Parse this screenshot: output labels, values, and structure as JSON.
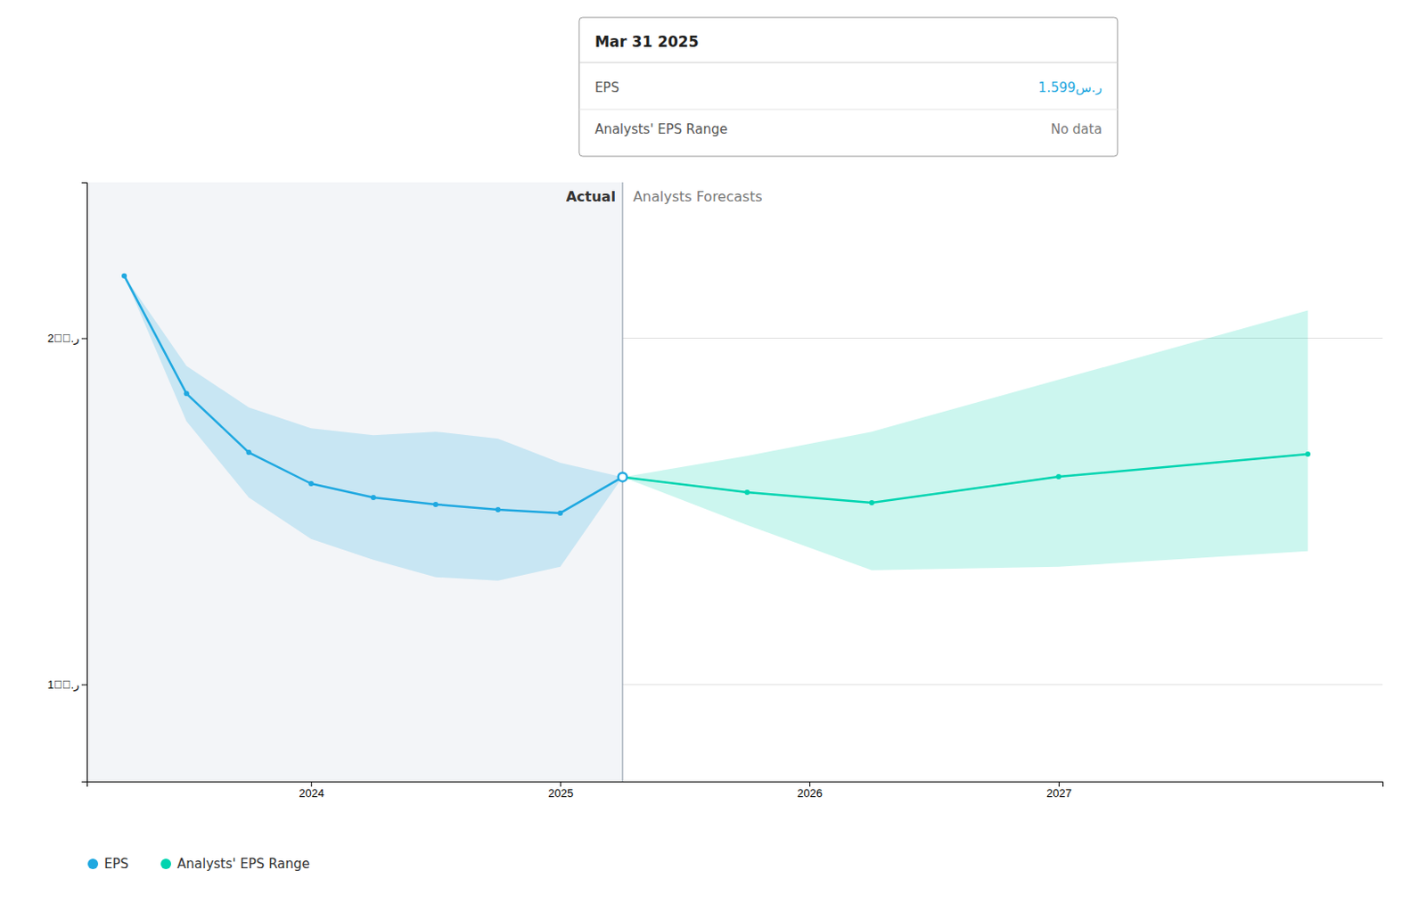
{
  "chart_data": {
    "type": "line",
    "xlim": [
      2023.1,
      2028.3
    ],
    "xticks": [
      2024,
      2025,
      2026,
      2027
    ],
    "ylim": [
      0.72,
      2.45
    ],
    "yticks": [
      {
        "value": 1.0,
        "label": "ر.س٘1"
      },
      {
        "value": 2.0,
        "label": "ر.س٘2"
      }
    ],
    "grid": true,
    "legend": "bottom left",
    "series": [
      {
        "name": "EPS",
        "color": "#1fa8e0",
        "x": [
          2023.25,
          2023.5,
          2023.75,
          2024.0,
          2024.25,
          2024.5,
          2024.75,
          2025.0,
          2025.25
        ],
        "values": [
          2.18,
          1.84,
          1.67,
          1.58,
          1.54,
          1.52,
          1.505,
          1.495,
          1.599
        ],
        "upper": [
          2.18,
          1.92,
          1.8,
          1.74,
          1.72,
          1.73,
          1.71,
          1.64,
          1.599
        ],
        "lower": [
          2.18,
          1.76,
          1.54,
          1.42,
          1.36,
          1.31,
          1.3,
          1.34,
          1.599
        ]
      },
      {
        "name": "Analysts' EPS Range",
        "color": "#00d4b0",
        "x": [
          2025.25,
          2025.75,
          2026.25,
          2027.0,
          2028.0
        ],
        "values": [
          1.599,
          1.555,
          1.525,
          1.6,
          1.665
        ],
        "upper": [
          1.599,
          1.66,
          1.73,
          1.88,
          2.08
        ],
        "lower": [
          1.599,
          1.46,
          1.33,
          1.34,
          1.385
        ]
      }
    ],
    "annotations": [
      "Actual",
      "Analysts Forecasts"
    ],
    "tooltip": {
      "title": "Mar 31 2025",
      "rows": [
        {
          "label": "EPS",
          "value": "1.599ر.س"
        },
        {
          "label": "Analysts' EPS Range",
          "value": "No data"
        }
      ]
    }
  }
}
